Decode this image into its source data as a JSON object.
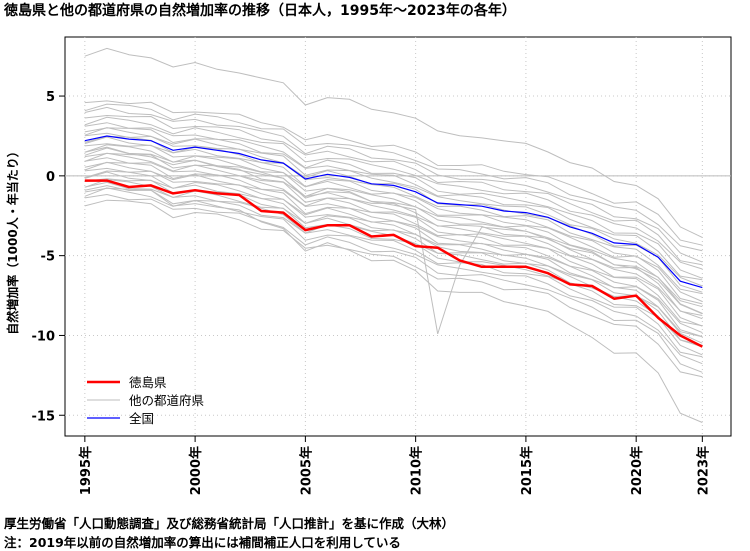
{
  "chart_data": {
    "type": "line",
    "title": "徳島県と他の都道府県の自然増加率の推移（日本人，1995年〜2023年の各年）",
    "ylabel": "自然増加率（1000人・年当たり）",
    "xlim": [
      1994.1,
      2024.3
    ],
    "ylim": [
      -16.3,
      8.7
    ],
    "x_ticks": [
      {
        "value": 1995,
        "label": "1995年"
      },
      {
        "value": 2000,
        "label": "2000年"
      },
      {
        "value": 2005,
        "label": "2005年"
      },
      {
        "value": 2010,
        "label": "2010年"
      },
      {
        "value": 2015,
        "label": "2015年"
      },
      {
        "value": 2020,
        "label": "2020年"
      },
      {
        "value": 2023,
        "label": "2023年"
      }
    ],
    "y_ticks": [
      {
        "value": 5,
        "label": "5"
      },
      {
        "value": 0,
        "label": "0"
      },
      {
        "value": -5,
        "label": "-5"
      },
      {
        "value": -10,
        "label": "-10"
      },
      {
        "value": -15,
        "label": "-15"
      }
    ],
    "grid": true,
    "legend_position": "bottom-left",
    "legend": [
      {
        "label": "徳島県",
        "color": "#ff0000"
      },
      {
        "label": "他の都道府県",
        "color": "#bebebe"
      },
      {
        "label": "全国",
        "color": "#0000ff"
      }
    ],
    "x": [
      1995,
      1996,
      1997,
      1998,
      1999,
      2000,
      2001,
      2002,
      2003,
      2004,
      2005,
      2006,
      2007,
      2008,
      2009,
      2010,
      2011,
      2012,
      2013,
      2014,
      2015,
      2016,
      2017,
      2018,
      2019,
      2020,
      2021,
      2022,
      2023
    ],
    "tokushima": [
      -0.3,
      -0.3,
      -0.7,
      -0.6,
      -1.1,
      -0.9,
      -1.1,
      -1.2,
      -2.2,
      -2.3,
      -3.4,
      -3.1,
      -3.1,
      -3.8,
      -3.7,
      -4.4,
      -4.5,
      -5.3,
      -5.7,
      -5.7,
      -5.7,
      -6.1,
      -6.8,
      -6.9,
      -7.7,
      -7.5,
      -8.9,
      -10.0,
      -10.7
    ],
    "national": [
      2.2,
      2.5,
      2.3,
      2.2,
      1.6,
      1.8,
      1.6,
      1.4,
      1.0,
      0.8,
      -0.2,
      0.1,
      -0.1,
      -0.5,
      -0.6,
      -1.0,
      -1.7,
      -1.8,
      -1.9,
      -2.2,
      -2.3,
      -2.6,
      -3.2,
      -3.6,
      -4.2,
      -4.3,
      -5.1,
      -6.6,
      -7.0
    ],
    "other_prefectures": [
      {
        "start": 7.5,
        "end": -3.8
      },
      {
        "start": 4.5,
        "end": -4.3
      },
      {
        "start": 4.2,
        "end": -4.8
      },
      {
        "start": 3.9,
        "end": -5.3
      },
      {
        "start": 3.6,
        "end": -5.6
      },
      {
        "start": 3.3,
        "end": -5.9
      },
      {
        "start": 3.0,
        "end": -6.3
      },
      {
        "start": 2.8,
        "end": -6.6
      },
      {
        "start": 2.6,
        "end": -6.9
      },
      {
        "start": 2.4,
        "end": -7.2
      },
      {
        "start": 2.2,
        "end": -7.5
      },
      {
        "start": 2.0,
        "end": -7.8
      },
      {
        "start": 1.8,
        "end": -8.0
      },
      {
        "start": 1.6,
        "end": -8.3
      },
      {
        "start": 1.4,
        "end": -8.5
      },
      {
        "start": 1.2,
        "end": -8.8
      },
      {
        "start": 1.0,
        "end": -9.0
      },
      {
        "start": 0.8,
        "end": -9.3
      },
      {
        "start": 0.6,
        "end": -9.5
      },
      {
        "start": 0.4,
        "end": -9.8
      },
      {
        "start": 0.2,
        "end": -10.0
      },
      {
        "start": 0.0,
        "end": -10.2
      },
      {
        "start": -0.2,
        "end": -10.4
      },
      {
        "start": -0.4,
        "end": -10.6
      },
      {
        "start": -0.6,
        "end": -10.8
      },
      {
        "start": -0.8,
        "end": -11.1
      },
      {
        "start": -1.0,
        "end": -11.4
      },
      {
        "start": -1.2,
        "end": -11.8
      },
      {
        "start": -1.5,
        "end": -12.2
      },
      {
        "start": -1.8,
        "end": -12.7
      },
      {
        "start": 1.3,
        "end": -8.6,
        "dip": {
          "2011": -9.9,
          "2012": -5.6
        }
      },
      {
        "start": -1.0,
        "end": -15.4
      }
    ]
  },
  "notes": {
    "source": "厚生労働省「人口動態調査」及び総務省統計局「人口推計」を基に作成（大林）",
    "note": "注：2019年以前の自然増加率の算出には補間補正人口を利用している"
  }
}
